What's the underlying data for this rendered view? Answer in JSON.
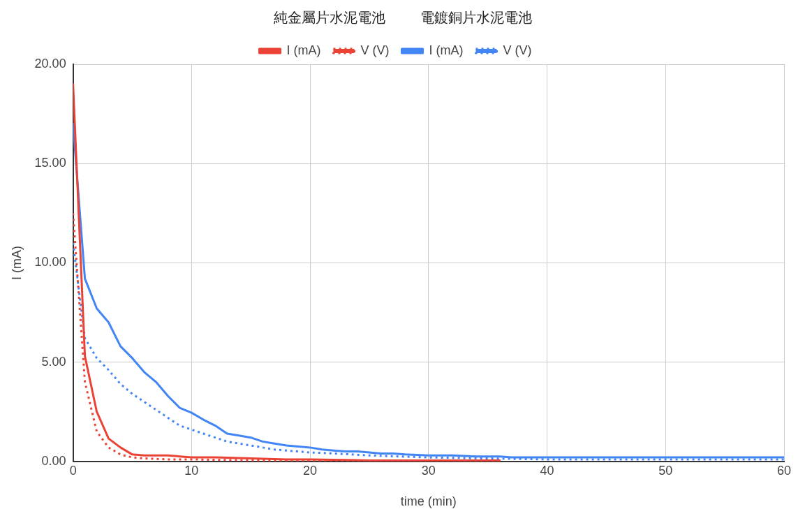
{
  "chart_data": {
    "type": "line",
    "annotations": [
      "純金屬片水泥電池",
      "電鍍銅片水泥電池"
    ],
    "xlabel": "time (min)",
    "ylabel": "I (mA)",
    "xlim": [
      0,
      60
    ],
    "xticks": [
      0,
      10,
      20,
      30,
      40,
      50,
      60
    ],
    "ylim": [
      0,
      20
    ],
    "yticks": [
      {
        "value": 0,
        "label": "0.00"
      },
      {
        "value": 5,
        "label": "5.00"
      },
      {
        "value": 10,
        "label": "10.00"
      },
      {
        "value": 15,
        "label": "15.00"
      },
      {
        "value": 20,
        "label": "20.00"
      }
    ],
    "grid": true,
    "legend": "top",
    "marker": "none",
    "series": [
      {
        "name": "I (mA)",
        "color": "#ea4335",
        "line_style": "solid",
        "x": [
          0,
          1,
          2,
          3,
          4,
          5,
          6,
          7,
          8,
          9,
          10,
          12,
          15,
          18,
          20,
          25,
          30,
          36
        ],
        "values": [
          19.0,
          5.3,
          2.5,
          1.15,
          0.7,
          0.35,
          0.3,
          0.3,
          0.3,
          0.25,
          0.2,
          0.2,
          0.15,
          0.1,
          0.1,
          0.05,
          0.05,
          0.05
        ]
      },
      {
        "name": "V (V)",
        "color": "#ea4335",
        "line_style": "dotted",
        "x": [
          0,
          1,
          2,
          3,
          4,
          5,
          6,
          8,
          10,
          15,
          20,
          30,
          36
        ],
        "values": [
          12.5,
          4.0,
          1.5,
          0.7,
          0.35,
          0.2,
          0.15,
          0.1,
          0.1,
          0.05,
          0.05,
          0.05,
          0.05
        ]
      },
      {
        "name": "I (mA)",
        "color": "#4285f4",
        "line_style": "solid",
        "x": [
          0,
          1,
          2,
          3,
          4,
          5,
          6,
          7,
          8,
          9,
          10,
          11,
          12,
          13,
          14,
          15,
          16,
          17,
          18,
          19,
          20,
          21,
          22,
          23,
          24,
          25,
          26,
          27,
          28,
          30,
          32,
          34,
          36,
          37,
          40,
          50,
          60
        ],
        "values": [
          17.0,
          9.2,
          7.7,
          7.0,
          5.8,
          5.2,
          4.5,
          4.0,
          3.3,
          2.7,
          2.45,
          2.1,
          1.8,
          1.4,
          1.3,
          1.2,
          1.0,
          0.9,
          0.8,
          0.75,
          0.7,
          0.6,
          0.55,
          0.5,
          0.5,
          0.45,
          0.4,
          0.4,
          0.35,
          0.3,
          0.3,
          0.25,
          0.25,
          0.2,
          0.2,
          0.2,
          0.2
        ]
      },
      {
        "name": "V (V)",
        "color": "#4285f4",
        "line_style": "dotted",
        "x": [
          0,
          1,
          2,
          3,
          4,
          5,
          6,
          7,
          8,
          9,
          10,
          11,
          12,
          13,
          14,
          15,
          16,
          17,
          18,
          20,
          22,
          25,
          30,
          35,
          40,
          50,
          60
        ],
        "values": [
          11.0,
          6.2,
          5.2,
          4.6,
          3.9,
          3.4,
          3.0,
          2.6,
          2.2,
          1.8,
          1.6,
          1.4,
          1.2,
          1.0,
          0.9,
          0.8,
          0.7,
          0.6,
          0.55,
          0.45,
          0.4,
          0.3,
          0.2,
          0.15,
          0.1,
          0.1,
          0.1
        ]
      }
    ]
  }
}
